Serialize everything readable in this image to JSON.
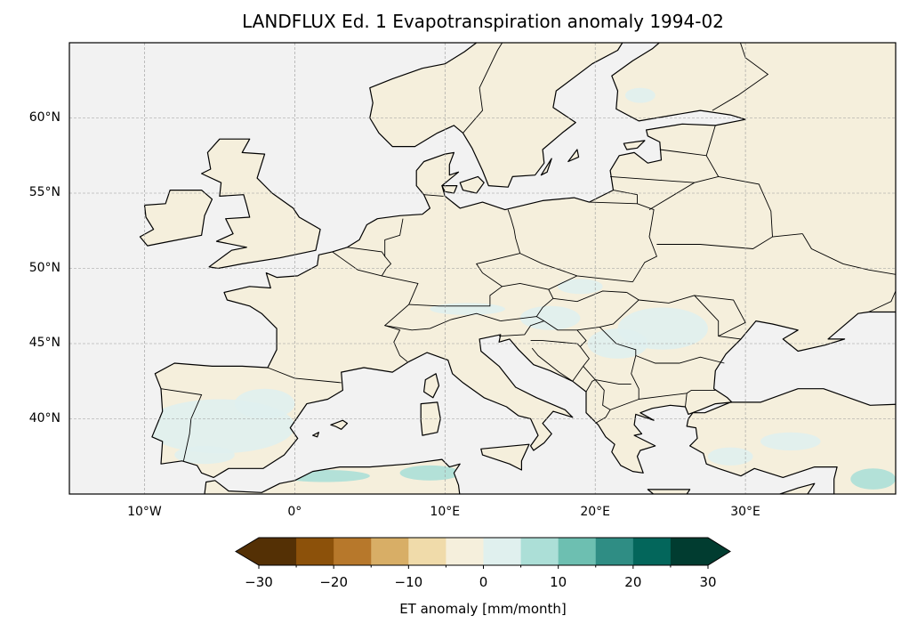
{
  "title": "LANDFLUX Ed. 1 Evapotranspiration anomaly 1994-02",
  "map": {
    "projection": "PlateCarree",
    "extent": {
      "lon": [
        -15,
        40
      ],
      "lat": [
        35,
        65
      ]
    },
    "gridlines": "dashed",
    "ocean_color": "#f2f2f2",
    "land_color": "#f5efdc",
    "xticks": [
      {
        "value": -10,
        "label": "10°W"
      },
      {
        "value": 0,
        "label": "0°"
      },
      {
        "value": 10,
        "label": "10°E"
      },
      {
        "value": 20,
        "label": "20°E"
      },
      {
        "value": 30,
        "label": "30°E"
      }
    ],
    "yticks": [
      {
        "value": 60,
        "label": "60°N"
      },
      {
        "value": 55,
        "label": "55°N"
      },
      {
        "value": 50,
        "label": "50°N"
      },
      {
        "value": 45,
        "label": "45°N"
      },
      {
        "value": 40,
        "label": "40°N"
      }
    ]
  },
  "colorbar": {
    "label": "ET anomaly [mm/month]",
    "colormap": "BrBG",
    "extend": "both",
    "boundaries": [
      -30,
      -25,
      -20,
      -15,
      -10,
      -5,
      0,
      5,
      10,
      15,
      20,
      25,
      30
    ],
    "colors": [
      "#543005",
      "#8c510a",
      "#b7782b",
      "#d8ae66",
      "#f0dbaa",
      "#f5efdc",
      "#e0f0ee",
      "#acdfd7",
      "#6dbfb1",
      "#2f8d84",
      "#03665b",
      "#013c30"
    ],
    "ticks": [
      {
        "value": -30,
        "label": "−30"
      },
      {
        "value": -20,
        "label": "−20"
      },
      {
        "value": -10,
        "label": "−10"
      },
      {
        "value": 0,
        "label": "0"
      },
      {
        "value": 10,
        "label": "10"
      },
      {
        "value": 20,
        "label": "20"
      },
      {
        "value": 30,
        "label": "30"
      }
    ]
  }
}
